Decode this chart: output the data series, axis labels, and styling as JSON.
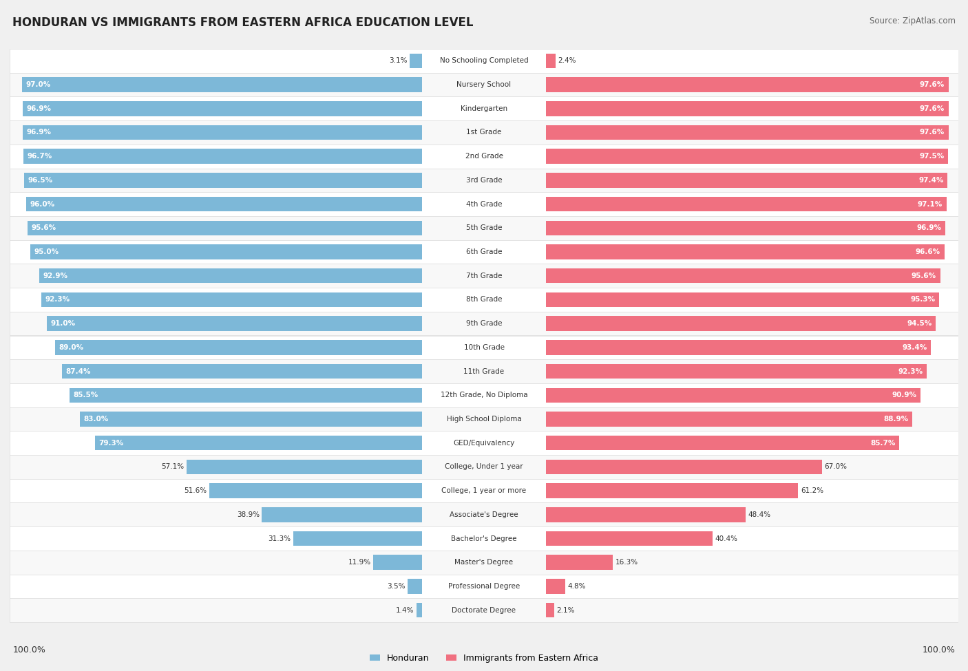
{
  "title": "HONDURAN VS IMMIGRANTS FROM EASTERN AFRICA EDUCATION LEVEL",
  "source": "Source: ZipAtlas.com",
  "categories": [
    "No Schooling Completed",
    "Nursery School",
    "Kindergarten",
    "1st Grade",
    "2nd Grade",
    "3rd Grade",
    "4th Grade",
    "5th Grade",
    "6th Grade",
    "7th Grade",
    "8th Grade",
    "9th Grade",
    "10th Grade",
    "11th Grade",
    "12th Grade, No Diploma",
    "High School Diploma",
    "GED/Equivalency",
    "College, Under 1 year",
    "College, 1 year or more",
    "Associate's Degree",
    "Bachelor's Degree",
    "Master's Degree",
    "Professional Degree",
    "Doctorate Degree"
  ],
  "honduran": [
    3.1,
    97.0,
    96.9,
    96.9,
    96.7,
    96.5,
    96.0,
    95.6,
    95.0,
    92.9,
    92.3,
    91.0,
    89.0,
    87.4,
    85.5,
    83.0,
    79.3,
    57.1,
    51.6,
    38.9,
    31.3,
    11.9,
    3.5,
    1.4
  ],
  "eastern_africa": [
    2.4,
    97.6,
    97.6,
    97.6,
    97.5,
    97.4,
    97.1,
    96.9,
    96.6,
    95.6,
    95.3,
    94.5,
    93.4,
    92.3,
    90.9,
    88.9,
    85.7,
    67.0,
    61.2,
    48.4,
    40.4,
    16.3,
    4.8,
    2.1
  ],
  "blue_color": "#7db8d8",
  "pink_color": "#f07080",
  "bg_color": "#f0f0f0",
  "row_bg_color": "#ffffff",
  "row_alt_color": "#f8f8f8",
  "legend_blue": "Honduran",
  "legend_pink": "Immigrants from Eastern Africa",
  "left_label": "100.0%",
  "right_label": "100.0%",
  "inside_threshold": 70,
  "label_fontsize": 7.5,
  "cat_fontsize": 7.5,
  "title_fontsize": 12,
  "source_fontsize": 8.5
}
